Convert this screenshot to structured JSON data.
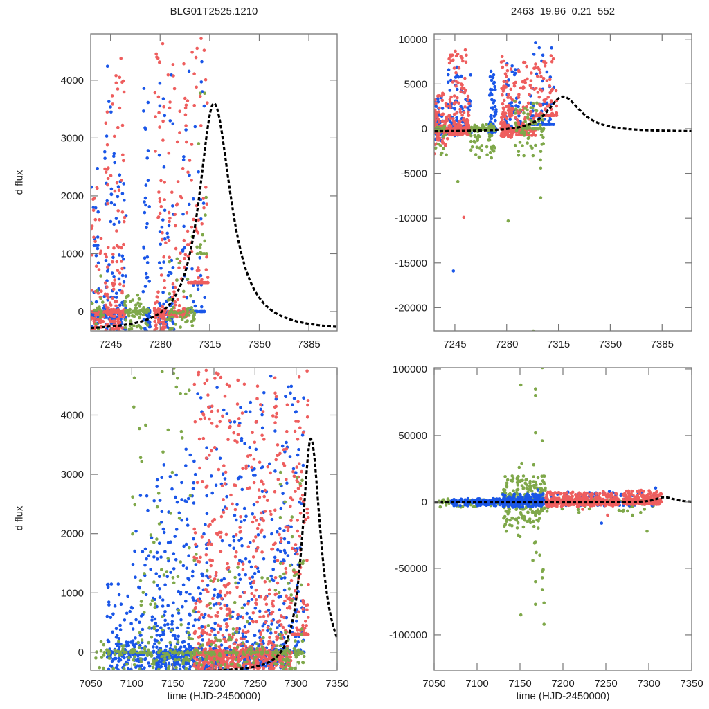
{
  "figure": {
    "title_left": "BLG01T2525.1210",
    "title_right": "2463  19.96  0.21  552",
    "ylabel": "d flux",
    "xlabel": "time (HJD-2450000)"
  },
  "chart_data": [
    {
      "id": "top-left",
      "type": "scatter",
      "title": "BLG01T2525.1210",
      "xlabel": "",
      "ylabel": "d flux",
      "xlim": [
        7231,
        7405
      ],
      "ylim": [
        -335,
        4800
      ],
      "xticks": [
        7245,
        7280,
        7315,
        7350,
        7385
      ],
      "yticks": [
        0,
        1000,
        2000,
        3000,
        4000
      ],
      "grid": false,
      "legend": "none",
      "model": {
        "name": "model",
        "style": "black dashed",
        "t0": 7318,
        "peak": 3600,
        "baseline": -330,
        "width_rise": 14,
        "width_fall": 16
      },
      "series": [
        {
          "name": "blue",
          "color": "#1a56e8",
          "clusters": [
            [
              7231,
              7237,
              -335,
              2500,
              45
            ],
            [
              7240,
              7248,
              -335,
              4400,
              90
            ],
            [
              7249,
              7256,
              -335,
              3000,
              55
            ],
            [
              7268,
              7273,
              -335,
              4600,
              70
            ],
            [
              7279,
              7290,
              -335,
              4700,
              90
            ],
            [
              7296,
              7312,
              0,
              4500,
              80
            ]
          ]
        },
        {
          "name": "red",
          "color": "#ee5e5e",
          "clusters": [
            [
              7231,
              7240,
              -335,
              2200,
              60
            ],
            [
              7241,
              7255,
              -335,
              4500,
              160
            ],
            [
              7276,
              7284,
              -335,
              4800,
              110
            ],
            [
              7285,
              7300,
              -100,
              4500,
              130
            ],
            [
              7300,
              7314,
              500,
              4800,
              90
            ]
          ]
        },
        {
          "name": "green",
          "color": "#7fa84a",
          "clusters": [
            [
              7232,
              7240,
              -335,
              700,
              20
            ],
            [
              7255,
              7272,
              -335,
              300,
              80
            ],
            [
              7285,
              7305,
              -335,
              1300,
              60
            ],
            [
              7305,
              7313,
              1000,
              3800,
              25
            ]
          ]
        }
      ]
    },
    {
      "id": "top-right",
      "type": "scatter",
      "title": "2463  19.96  0.21  552",
      "xlabel": "",
      "ylabel": "",
      "xlim": [
        7231,
        7405
      ],
      "ylim": [
        -22600,
        10600
      ],
      "xticks": [
        7245,
        7280,
        7315,
        7350,
        7385
      ],
      "yticks": [
        -20000,
        -15000,
        -10000,
        -5000,
        0,
        5000,
        10000
      ],
      "grid": false,
      "legend": "none",
      "model": {
        "name": "model",
        "style": "black dashed",
        "t0": 7318,
        "peak": 3600,
        "baseline": -330,
        "width_rise": 14,
        "width_fall": 16
      },
      "series": [
        {
          "name": "blue",
          "color": "#1a56e8",
          "clusters": [
            [
              7231,
              7237,
              -1500,
              3500,
              80
            ],
            [
              7240,
              7248,
              -800,
              7000,
              120
            ],
            [
              7249,
              7256,
              -500,
              6200,
              60
            ],
            [
              7268,
              7273,
              -600,
              6800,
              90
            ],
            [
              7279,
              7290,
              -300,
              7600,
              120
            ],
            [
              7296,
              7312,
              500,
              10500,
              90
            ]
          ],
          "outliers": [
            [
              7244,
              -15900
            ]
          ]
        },
        {
          "name": "red",
          "color": "#ee5e5e",
          "clusters": [
            [
              7231,
              7240,
              -2000,
              4000,
              120
            ],
            [
              7241,
              7255,
              -700,
              9000,
              220
            ],
            [
              7276,
              7284,
              -1000,
              8900,
              150
            ],
            [
              7285,
              7300,
              -800,
              7800,
              170
            ],
            [
              7300,
              7314,
              1500,
              8300,
              110
            ]
          ],
          "outliers": [
            [
              7251,
              -9900
            ],
            [
              7231,
              -2800
            ]
          ]
        },
        {
          "name": "green",
          "color": "#7fa84a",
          "clusters": [
            [
              7232,
              7240,
              -3300,
              300,
              25
            ],
            [
              7255,
              7272,
              -3300,
              500,
              90
            ],
            [
              7285,
              7305,
              -3500,
              3200,
              80
            ]
          ],
          "outliers": [
            [
              7247,
              -5900
            ],
            [
              7281,
              -10300
            ],
            [
              7303,
              -7700
            ],
            [
              7303,
              -4400
            ],
            [
              7298,
              -22600
            ],
            [
              7294,
              -1600
            ]
          ]
        }
      ]
    },
    {
      "id": "bottom-left",
      "type": "scatter",
      "title": "",
      "xlabel": "time (HJD-2450000)",
      "ylabel": "d flux",
      "xlim": [
        7050,
        7350
      ],
      "ylim": [
        -305,
        4800
      ],
      "xticks": [
        7050,
        7100,
        7150,
        7200,
        7250,
        7300,
        7350
      ],
      "yticks": [
        0,
        1000,
        2000,
        3000,
        4000
      ],
      "grid": false,
      "legend": "none",
      "model": {
        "name": "model",
        "style": "black dashed",
        "t0": 7318,
        "peak": 3600,
        "baseline": -330,
        "width_rise": 14,
        "width_fall": 16
      },
      "series": [
        {
          "name": "blue",
          "color": "#1a56e8",
          "clusters": [
            [
              7070,
              7100,
              -305,
              1200,
              110
            ],
            [
              7100,
              7130,
              -305,
              2700,
              110
            ],
            [
              7130,
              7175,
              -305,
              3500,
              330
            ],
            [
              7175,
              7230,
              -305,
              4500,
              260
            ],
            [
              7230,
              7260,
              -305,
              4400,
              200
            ],
            [
              7260,
              7290,
              -305,
              4700,
              180
            ],
            [
              7290,
              7310,
              0,
              4500,
              110
            ]
          ]
        },
        {
          "name": "red",
          "color": "#ee5e5e",
          "clusters": [
            [
              7176,
              7215,
              -305,
              4800,
              340
            ],
            [
              7215,
              7260,
              -305,
              4600,
              360
            ],
            [
              7260,
              7295,
              -305,
              4800,
              250
            ],
            [
              7295,
              7315,
              300,
              4800,
              140
            ]
          ]
        },
        {
          "name": "green",
          "color": "#7fa84a",
          "clusters": [
            [
              7055,
              7100,
              -305,
              200,
              40
            ],
            [
              7100,
              7180,
              -305,
              4800,
              170
            ],
            [
              7180,
              7280,
              -305,
              1500,
              120
            ],
            [
              7280,
              7310,
              -305,
              3300,
              90
            ]
          ]
        }
      ]
    },
    {
      "id": "bottom-right",
      "type": "scatter",
      "title": "",
      "xlabel": "time (HJD-2450000)",
      "ylabel": "",
      "xlim": [
        7050,
        7350
      ],
      "ylim": [
        -126600,
        101000
      ],
      "xticks": [
        7050,
        7100,
        7150,
        7200,
        7250,
        7300,
        7350
      ],
      "yticks": [
        -100000,
        -50000,
        0,
        50000,
        100000
      ],
      "grid": false,
      "legend": "none",
      "model": {
        "name": "model",
        "style": "black dashed",
        "t0": 7318,
        "peak": 3600,
        "baseline": -330,
        "width_rise": 14,
        "width_fall": 16
      },
      "series": [
        {
          "name": "green",
          "color": "#7fa84a",
          "clusters": [
            [
              7055,
              7130,
              -4000,
              2500,
              60
            ],
            [
              7130,
              7180,
              -20000,
              20000,
              320
            ],
            [
              7180,
              7310,
              -8000,
              3000,
              90
            ]
          ],
          "outliers": [
            [
              7151,
              88000
            ],
            [
              7168,
              85000
            ],
            [
              7168,
              80000
            ],
            [
              7168,
              52000
            ],
            [
              7176,
              46000
            ],
            [
              7152,
              29000
            ],
            [
              7149,
              26000
            ],
            [
              7166,
              28000
            ],
            [
              7168,
              15000
            ],
            [
              7134,
              -22000
            ],
            [
              7148,
              -25000
            ],
            [
              7150,
              -26000
            ],
            [
              7165,
              -44000
            ],
            [
              7167,
              -31000
            ],
            [
              7168,
              -30000
            ],
            [
              7169,
              -38000
            ],
            [
              7173,
              -40000
            ],
            [
              7176,
              -52000
            ],
            [
              7177,
              -51000
            ],
            [
              7168,
              -60000
            ],
            [
              7176,
              -57000
            ],
            [
              7176,
              -66000
            ],
            [
              7168,
              -77000
            ],
            [
              7178,
              -76000
            ],
            [
              7151,
              -85000
            ],
            [
              7178,
              -92000
            ],
            [
              7148,
              -128000
            ],
            [
              7176,
              101000
            ],
            [
              7281,
              -10000
            ],
            [
              7298,
              -22000
            ]
          ]
        },
        {
          "name": "blue",
          "color": "#1a56e8",
          "clusters": [
            [
              7070,
              7130,
              -3000,
              2500,
              160
            ],
            [
              7130,
              7178,
              -4000,
              6000,
              260
            ],
            [
              7180,
              7310,
              -3000,
              8000,
              140
            ]
          ],
          "outliers": [
            [
              7171,
              9000
            ],
            [
              7245,
              -16000
            ],
            [
              7308,
              10500
            ]
          ]
        },
        {
          "name": "red",
          "color": "#ee5e5e",
          "clusters": [
            [
              7180,
              7225,
              -3500,
              7500,
              280
            ],
            [
              7225,
              7265,
              -3000,
              7000,
              220
            ],
            [
              7270,
              7315,
              -2000,
              9000,
              300
            ]
          ],
          "outliers": [
            [
              7223,
              -5500
            ],
            [
              7252,
              -10000
            ],
            [
              7247,
              8000
            ]
          ]
        }
      ]
    }
  ]
}
